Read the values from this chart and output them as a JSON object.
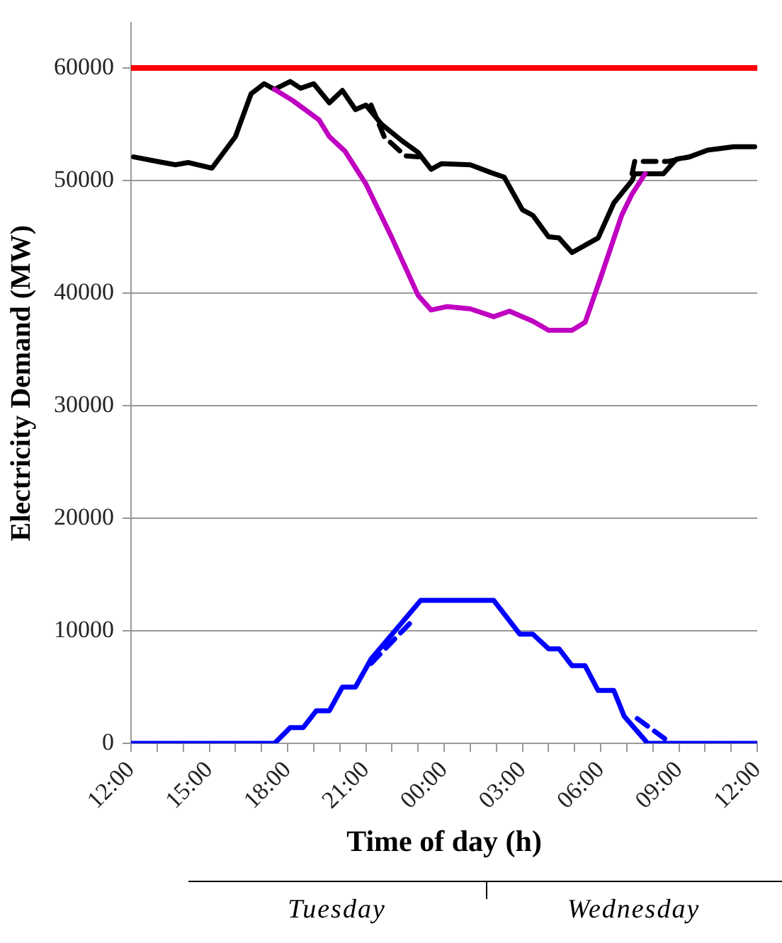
{
  "chart_data": {
    "type": "line",
    "xlabel": "Time of day (h)",
    "ylabel": "Electricity Demand (MW)",
    "xlim": [
      "--01-02T12:00",
      "--01-03T12:00"
    ],
    "xticks": [
      {
        "value": "--01-02T12:00",
        "label": "12:00"
      },
      {
        "value": "--01-02T13:00",
        "label": null
      },
      {
        "value": "--01-02T14:00",
        "label": null
      },
      {
        "value": "--01-02T15:00",
        "label": "15:00"
      },
      {
        "value": "--01-02T16:00",
        "label": null
      },
      {
        "value": "--01-02T17:00",
        "label": null
      },
      {
        "value": "--01-02T18:00",
        "label": "18:00"
      },
      {
        "value": "--01-02T19:00",
        "label": null
      },
      {
        "value": "--01-02T20:00",
        "label": null
      },
      {
        "value": "--01-02T21:00",
        "label": "21:00"
      },
      {
        "value": "--01-02T22:00",
        "label": null
      },
      {
        "value": "--01-02T23:00",
        "label": null
      },
      {
        "value": "--01-03T00:00",
        "label": "00:00"
      },
      {
        "value": "--01-03T01:00",
        "label": null
      },
      {
        "value": "--01-03T02:00",
        "label": null
      },
      {
        "value": "--01-03T03:00",
        "label": "03:00"
      },
      {
        "value": "--01-03T04:00",
        "label": null
      },
      {
        "value": "--01-03T05:00",
        "label": null
      },
      {
        "value": "--01-03T06:00",
        "label": "06:00"
      },
      {
        "value": "--01-03T07:00",
        "label": null
      },
      {
        "value": "--01-03T08:00",
        "label": null
      },
      {
        "value": "--01-03T09:00",
        "label": "09:00"
      },
      {
        "value": "--01-03T10:00",
        "label": null
      },
      {
        "value": "--01-03T11:00",
        "label": null
      },
      {
        "value": "--01-03T12:00",
        "label": "12:00"
      }
    ],
    "ylim": [
      0,
      64000
    ],
    "yticks": [
      0,
      10000,
      20000,
      30000,
      40000,
      50000,
      60000
    ],
    "grid": "y",
    "series": [
      {
        "color": "#c000c0",
        "line_style": "solid",
        "x": [
          "--01-02T17:30",
          "--01-02T18:12",
          "--01-02T19:12",
          "--01-02T19:36",
          "--01-02T20:12",
          "--01-02T21:00",
          "--01-02T22:00",
          "--01-02T23:00",
          "--01-02T23:30",
          "--01-03T00:06",
          "--01-03T01:00",
          "--01-03T01:54",
          "--01-03T02:30",
          "--01-03T03:24",
          "--01-03T04:00",
          "--01-03T04:54",
          "--01-03T05:24",
          "--01-03T06:00",
          "--01-03T06:48",
          "--01-03T07:12",
          "--01-03T07:42"
        ],
        "values": [
          58100,
          57100,
          55400,
          53900,
          52600,
          49700,
          44900,
          39800,
          38500,
          38800,
          38600,
          37900,
          38400,
          37500,
          36700,
          36700,
          37400,
          41400,
          46900,
          48800,
          50600
        ]
      },
      {
        "color": "#000000",
        "line_style": "dashed",
        "x": [
          "--01-02T21:12",
          "--01-02T21:42",
          "--01-02T22:30",
          "--01-02T23:00",
          "--01-03T03:00",
          "--01-03T07:12",
          "--01-03T07:18",
          "--01-03T08:36",
          "--01-03T09:24"
        ],
        "values": [
          56700,
          53900,
          52200,
          52100,
          null,
          50600,
          51700,
          51700,
          52100
        ]
      },
      {
        "color": "#000000",
        "line_style": "solid",
        "x": [
          "--01-02T12:06",
          "--01-02T13:00",
          "--01-02T13:42",
          "--01-02T14:12",
          "--01-02T15:06",
          "--01-02T16:00",
          "--01-02T16:36",
          "--01-02T17:06",
          "--01-02T17:30",
          "--01-02T18:06",
          "--01-02T18:30",
          "--01-02T19:00",
          "--01-02T19:36",
          "--01-02T20:06",
          "--01-02T20:36",
          "--01-02T21:00",
          "--01-02T21:36",
          "--01-02T22:24",
          "--01-02T23:00",
          "--01-02T23:30",
          "--01-02T23:54",
          "--01-03T01:00",
          "--01-03T01:48",
          "--01-03T02:18",
          "--01-03T03:00",
          "--01-03T03:24",
          "--01-03T04:00",
          "--01-03T04:24",
          "--01-03T04:54",
          "--01-03T05:54",
          "--01-03T06:30",
          "--01-03T07:12",
          "--01-03T07:18",
          "--01-03T08:24",
          "--01-03T08:54",
          "--01-03T09:24",
          "--01-03T10:06",
          "--01-03T11:06",
          "--01-03T11:54"
        ],
        "values": [
          52100,
          51700,
          51400,
          51600,
          51100,
          53900,
          57700,
          58600,
          58100,
          58800,
          58200,
          58600,
          56900,
          58000,
          56300,
          56700,
          55000,
          53500,
          52500,
          51000,
          51500,
          51400,
          50700,
          50300,
          47400,
          46900,
          45000,
          44900,
          43600,
          44900,
          48000,
          50000,
          50600,
          50600,
          51900,
          52100,
          52700,
          53000,
          53000
        ]
      },
      {
        "color": "#0000ff",
        "line_style": "dashed",
        "x": [
          "--01-02T21:12",
          "--01-02T22:42",
          "--01-03T03:00",
          "--01-03T07:24",
          "--01-03T08:42"
        ],
        "values": [
          7100,
          10700,
          null,
          2200,
          0
        ]
      },
      {
        "color": "#0000ff",
        "line_style": "solid",
        "x": [
          "--01-02T12:00",
          "--01-02T17:30",
          "--01-02T18:06",
          "--01-02T18:36",
          "--01-02T19:06",
          "--01-02T19:36",
          "--01-02T20:06",
          "--01-02T20:36",
          "--01-02T21:12",
          "--01-02T22:18",
          "--01-02T23:06",
          "--01-03T01:54",
          "--01-03T02:54",
          "--01-03T03:24",
          "--01-03T04:00",
          "--01-03T04:24",
          "--01-03T04:54",
          "--01-03T05:24",
          "--01-03T05:54",
          "--01-03T06:30",
          "--01-03T06:54",
          "--01-03T07:48",
          "--01-03T12:00"
        ],
        "values": [
          0,
          0,
          1400,
          1400,
          2900,
          2900,
          5000,
          5000,
          7500,
          10500,
          12700,
          12700,
          9700,
          9700,
          8400,
          8400,
          6900,
          6900,
          4700,
          4700,
          2400,
          0,
          0
        ]
      }
    ],
    "ref_lines": [
      {
        "axis": "y",
        "value": 60000,
        "color": "#ff0000"
      }
    ],
    "annotations": [
      "Tuesday",
      "Wednesday"
    ]
  }
}
